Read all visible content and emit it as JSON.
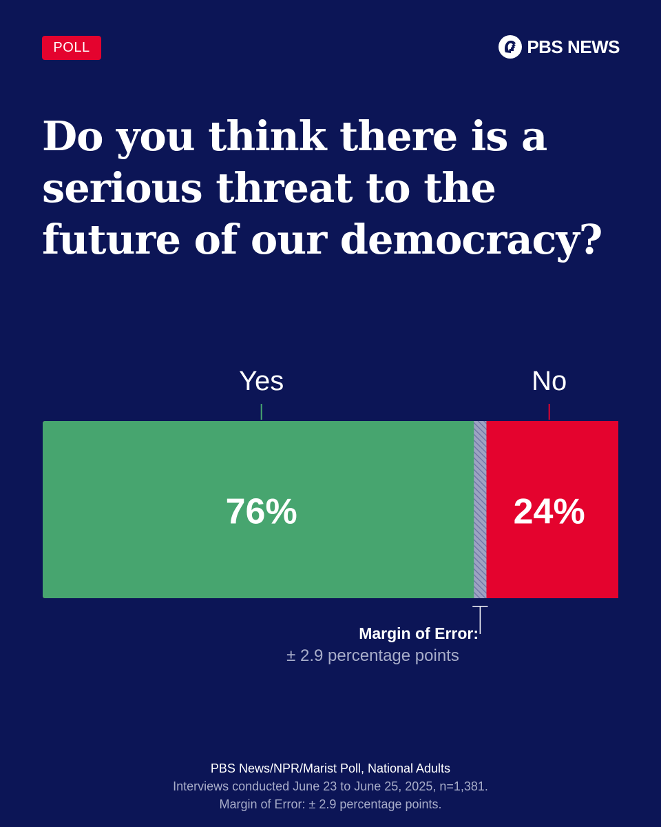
{
  "tag": "POLL",
  "logo": {
    "text": "PBS NEWS",
    "icon": "pbs-head-icon"
  },
  "headline": "Do you think there is a serious threat to the future of our democracy?",
  "chart_data": {
    "type": "bar",
    "orientation": "horizontal-stacked",
    "categories": [
      "Yes",
      "No"
    ],
    "values": [
      76,
      24
    ],
    "value_labels": [
      "76%",
      "24%"
    ],
    "unit": "%",
    "colors": {
      "Yes": "#47a56f",
      "No": "#e4032e",
      "margin": "#9da3c2"
    },
    "margin_of_error": 2.9,
    "xlim": [
      0,
      100
    ]
  },
  "moe": {
    "label": "Margin of Error:",
    "value": "± 2.9 percentage points"
  },
  "footer": {
    "source": "PBS News/NPR/Marist Poll, National Adults",
    "interviews": "Interviews conducted June 23 to June 25, 2025, n=1,381.",
    "margin": "Margin of Error: ± 2.9 percentage points."
  }
}
